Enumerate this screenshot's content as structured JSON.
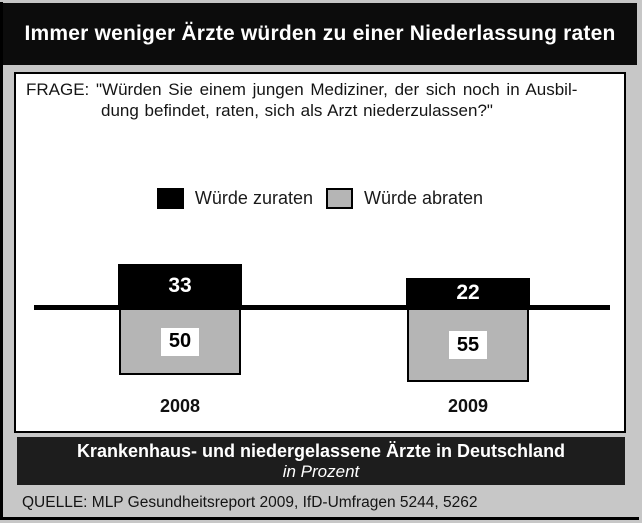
{
  "title": {
    "text": "Immer weniger Ärzte würden zu einer Niederlassung raten"
  },
  "question": {
    "line1": "FRAGE: \"Würden Sie einem jungen Mediziner, der sich noch in Ausbil-",
    "line2": "dung befindet, raten, sich als Arzt niederzulassen?\""
  },
  "legend": {
    "items": [
      {
        "label": "Würde zuraten",
        "color": "#000000"
      },
      {
        "label": "Würde abraten",
        "color": "#b5b5b5"
      }
    ]
  },
  "chart_data": {
    "type": "bar",
    "subtype": "diverging-from-baseline",
    "categories": [
      "2008",
      "2009"
    ],
    "series": [
      {
        "name": "Würde zuraten",
        "values": [
          33,
          22
        ],
        "color": "#000000",
        "direction": "up"
      },
      {
        "name": "Würde abraten",
        "values": [
          50,
          55
        ],
        "color": "#b5b5b5",
        "direction": "down"
      }
    ],
    "unit": "Prozent",
    "title": "Immer weniger Ärzte würden zu einer Niederlassung raten",
    "xlabel": "",
    "ylabel": "",
    "legend_position": "top-center",
    "grid": false,
    "baseline_axis": true
  },
  "banner": {
    "line1": "Krankenhaus- und niedergelassene Ärzte in Deutschland",
    "line2": "in Prozent"
  },
  "source": {
    "text": "QUELLE: MLP Gesundheitsreport 2009, IfD-Umfragen 5244, 5262"
  },
  "colors": {
    "page_bg": "#c7c7c7",
    "title_bg": "#0c0c0c",
    "banner_bg": "#1d1d1d",
    "bar_up": "#000000",
    "bar_down": "#b5b5b5"
  }
}
